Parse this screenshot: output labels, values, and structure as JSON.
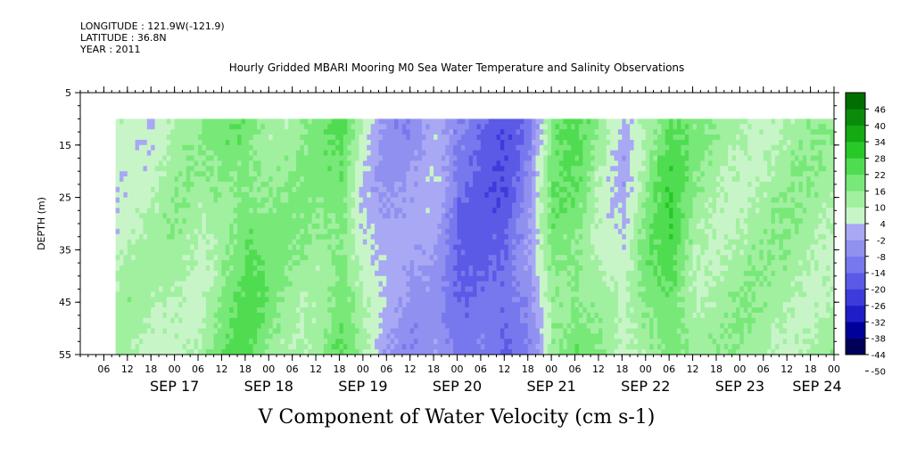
{
  "header": {
    "longitude": "LONGITUDE : 121.9W(-121.9)",
    "latitude": "LATITUDE : 36.8N",
    "year": "YEAR : 2011"
  },
  "chart_data": {
    "type": "heatmap",
    "title": "Hourly Gridded MBARI Mooring M0 Sea Water Temperature and Salinity Observations",
    "xlabel": "V Component of Water Velocity (cm s-1)",
    "ylabel": "DEPTH (m)",
    "ylim": [
      5,
      55
    ],
    "y_inverted": true,
    "y_ticks": [
      5,
      15,
      25,
      35,
      45,
      55
    ],
    "x_start": "2011-09-16 00:00",
    "x_end": "2011-09-23 23:00",
    "x_hour_ticks": [
      "06",
      "12",
      "18",
      "00",
      "06",
      "12",
      "18",
      "00",
      "06",
      "12",
      "18",
      "00",
      "06",
      "12",
      "18",
      "00",
      "06",
      "12",
      "18",
      "00",
      "06",
      "12",
      "18",
      "00",
      "06",
      "12",
      "18",
      "00",
      "06",
      "12",
      "18",
      "00"
    ],
    "x_day_labels": [
      "SEP 17",
      "SEP 18",
      "SEP 19",
      "SEP 20",
      "SEP 21",
      "SEP 22",
      "SEP 23",
      "SEP 24"
    ],
    "data_depth_range": [
      10,
      55
    ],
    "data_start": "2011-09-16 09:00",
    "colorbar": {
      "levels": [
        -50,
        -44,
        -38,
        -32,
        -26,
        -20,
        -14,
        -8,
        -2,
        4,
        10,
        16,
        22,
        28,
        34,
        40,
        46
      ],
      "labels": [
        "46",
        "40",
        "34",
        "28",
        "22",
        "16",
        "10",
        "4",
        "-2",
        "-8",
        "-14",
        "-20",
        "-26",
        "-32",
        "-38",
        "-44",
        "-50"
      ]
    },
    "series": [
      {
        "values_by_6h_midcolumn": [
          3,
          2,
          4,
          3,
          6,
          5,
          12,
          16,
          10,
          8,
          9,
          15,
          1,
          -8,
          -10,
          -6,
          -18,
          -20,
          -22,
          -12,
          12,
          14,
          6,
          -2,
          10,
          18,
          8,
          6
        ]
      }
    ]
  },
  "colors": {
    "green_strong": "#00c800",
    "green_light": "#a8f2a8",
    "blue_light": "#a8a8f0",
    "blue_mid": "#6464e6"
  }
}
